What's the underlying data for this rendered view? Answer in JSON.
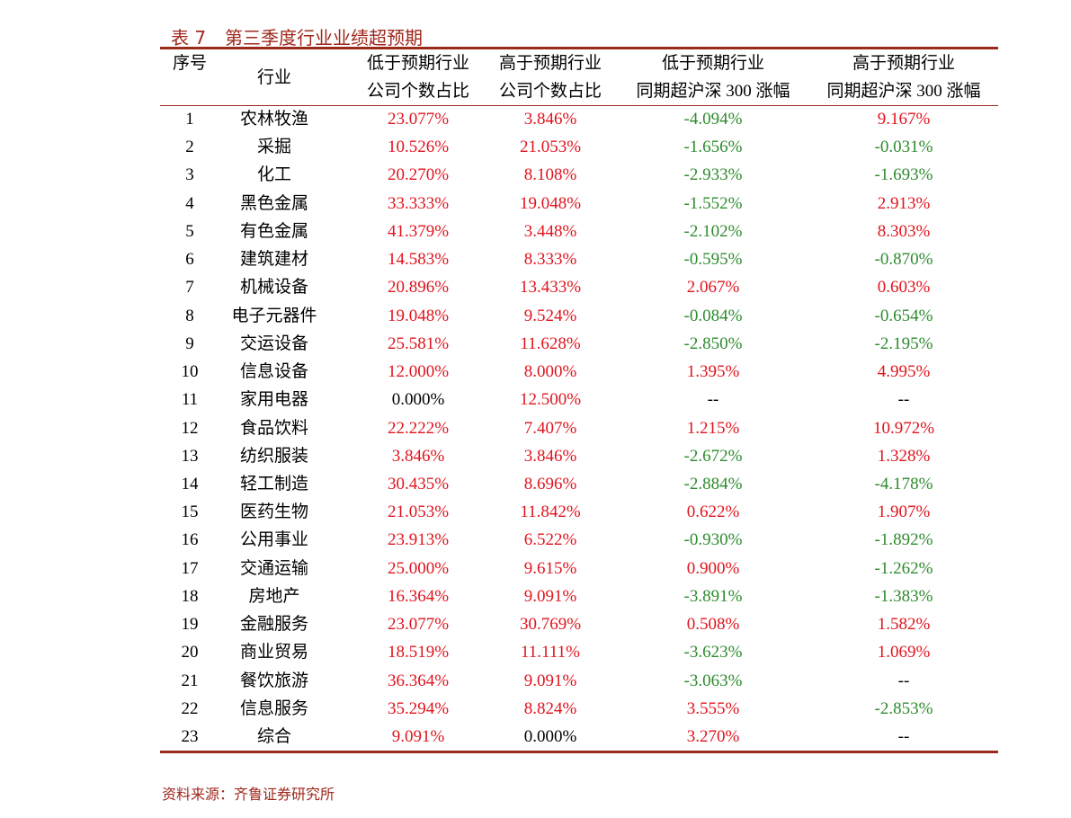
{
  "header": {
    "label": "表 7",
    "title": "第三季度行业业绩超预期"
  },
  "table": {
    "columns": [
      [
        "序号"
      ],
      [
        "行业"
      ],
      [
        "低于预期行业",
        "公司个数占比"
      ],
      [
        "高于预期行业",
        "公司个数占比"
      ],
      [
        "低于预期行业",
        "同期超沪深 300 涨幅"
      ],
      [
        "高于预期行业",
        "同期超沪深 300 涨幅"
      ]
    ],
    "rows": [
      [
        "1",
        "农林牧渔",
        "23.077%",
        "3.846%",
        "-4.094%",
        "9.167%"
      ],
      [
        "2",
        "采掘",
        "10.526%",
        "21.053%",
        "-1.656%",
        "-0.031%"
      ],
      [
        "3",
        "化工",
        "20.270%",
        "8.108%",
        "-2.933%",
        "-1.693%"
      ],
      [
        "4",
        "黑色金属",
        "33.333%",
        "19.048%",
        "-1.552%",
        "2.913%"
      ],
      [
        "5",
        "有色金属",
        "41.379%",
        "3.448%",
        "-2.102%",
        "8.303%"
      ],
      [
        "6",
        "建筑建材",
        "14.583%",
        "8.333%",
        "-0.595%",
        "-0.870%"
      ],
      [
        "7",
        "机械设备",
        "20.896%",
        "13.433%",
        "2.067%",
        "0.603%"
      ],
      [
        "8",
        "电子元器件",
        "19.048%",
        "9.524%",
        "-0.084%",
        "-0.654%"
      ],
      [
        "9",
        "交运设备",
        "25.581%",
        "11.628%",
        "-2.850%",
        "-2.195%"
      ],
      [
        "10",
        "信息设备",
        "12.000%",
        "8.000%",
        "1.395%",
        "4.995%"
      ],
      [
        "11",
        "家用电器",
        "0.000%",
        "12.500%",
        "--",
        "--"
      ],
      [
        "12",
        "食品饮料",
        "22.222%",
        "7.407%",
        "1.215%",
        "10.972%"
      ],
      [
        "13",
        "纺织服装",
        "3.846%",
        "3.846%",
        "-2.672%",
        "1.328%"
      ],
      [
        "14",
        "轻工制造",
        "30.435%",
        "8.696%",
        "-2.884%",
        "-4.178%"
      ],
      [
        "15",
        "医药生物",
        "21.053%",
        "11.842%",
        "0.622%",
        "1.907%"
      ],
      [
        "16",
        "公用事业",
        "23.913%",
        "6.522%",
        "-0.930%",
        "-1.892%"
      ],
      [
        "17",
        "交通运输",
        "25.000%",
        "9.615%",
        "0.900%",
        "-1.262%"
      ],
      [
        "18",
        "房地产",
        "16.364%",
        "9.091%",
        "-3.891%",
        "-1.383%"
      ],
      [
        "19",
        "金融服务",
        "23.077%",
        "30.769%",
        "0.508%",
        "1.582%"
      ],
      [
        "20",
        "商业贸易",
        "18.519%",
        "11.111%",
        "-3.623%",
        "1.069%"
      ],
      [
        "21",
        "餐饮旅游",
        "36.364%",
        "9.091%",
        "-3.063%",
        "--"
      ],
      [
        "22",
        "信息服务",
        "35.294%",
        "8.824%",
        "3.555%",
        "-2.853%"
      ],
      [
        "23",
        "综合",
        "9.091%",
        "0.000%",
        "3.270%",
        "--"
      ]
    ]
  },
  "source": "资料来源：齐鲁证券研究所"
}
